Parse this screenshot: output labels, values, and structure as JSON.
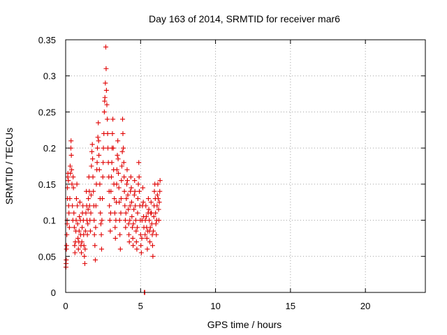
{
  "chart_data": {
    "type": "scatter",
    "title": "Day 163 of 2014, SRMTID for receiver mar6",
    "xlabel": "GPS time / hours",
    "ylabel": "SRMTID / TECUs",
    "xlim": [
      0,
      24
    ],
    "ylim": [
      0,
      0.35
    ],
    "xticks": [
      0,
      5,
      10,
      15,
      20
    ],
    "xtick_labels": [
      "0",
      "5",
      "10",
      "15",
      "20"
    ],
    "yticks": [
      0,
      0.05,
      0.1,
      0.15,
      0.2,
      0.25,
      0.3,
      0.35
    ],
    "ytick_labels": [
      "0",
      "0.05",
      "0.1",
      "0.15",
      "0.2",
      "0.25",
      "0.3",
      "0.35"
    ],
    "grid": true,
    "legend": "none",
    "marker": "+",
    "series": [
      {
        "color": "#e00000",
        "points": [
          [
            0.02,
            0.035
          ],
          [
            0.03,
            0.04
          ],
          [
            0.04,
            0.045
          ],
          [
            0.05,
            0.06
          ],
          [
            0.06,
            0.065
          ],
          [
            0.08,
            0.08
          ],
          [
            0.1,
            0.095
          ],
          [
            0.1,
            0.1
          ],
          [
            0.12,
            0.13
          ],
          [
            0.12,
            0.145
          ],
          [
            0.14,
            0.16
          ],
          [
            0.15,
            0.165
          ],
          [
            0.18,
            0.155
          ],
          [
            0.2,
            0.12
          ],
          [
            0.22,
            0.11
          ],
          [
            0.25,
            0.09
          ],
          [
            0.28,
            0.13
          ],
          [
            0.3,
            0.175
          ],
          [
            0.32,
            0.165
          ],
          [
            0.35,
            0.2
          ],
          [
            0.36,
            0.21
          ],
          [
            0.38,
            0.19
          ],
          [
            0.4,
            0.17
          ],
          [
            0.42,
            0.15
          ],
          [
            0.45,
            0.12
          ],
          [
            0.48,
            0.1
          ],
          [
            0.5,
            0.16
          ],
          [
            0.52,
            0.145
          ],
          [
            0.55,
            0.11
          ],
          [
            0.58,
            0.09
          ],
          [
            0.6,
            0.065
          ],
          [
            0.62,
            0.055
          ],
          [
            0.65,
            0.07
          ],
          [
            0.68,
            0.085
          ],
          [
            0.7,
            0.1
          ],
          [
            0.72,
            0.13
          ],
          [
            0.75,
            0.15
          ],
          [
            0.78,
            0.12
          ],
          [
            0.8,
            0.095
          ],
          [
            0.82,
            0.075
          ],
          [
            0.85,
            0.06
          ],
          [
            0.88,
            0.07
          ],
          [
            0.9,
            0.085
          ],
          [
            0.92,
            0.105
          ],
          [
            0.95,
            0.125
          ],
          [
            0.98,
            0.1
          ],
          [
            1.0,
            0.08
          ],
          [
            1.02,
            0.065
          ],
          [
            1.05,
            0.055
          ],
          [
            1.08,
            0.07
          ],
          [
            1.1,
            0.09
          ],
          [
            1.12,
            0.11
          ],
          [
            1.15,
            0.12
          ],
          [
            1.18,
            0.1
          ],
          [
            1.2,
            0.08
          ],
          [
            1.22,
            0.065
          ],
          [
            1.25,
            0.05
          ],
          [
            1.28,
            0.04
          ],
          [
            1.3,
            0.06
          ],
          [
            1.32,
            0.085
          ],
          [
            1.35,
            0.11
          ],
          [
            1.38,
            0.14
          ],
          [
            1.4,
            0.12
          ],
          [
            1.42,
            0.1
          ],
          [
            1.45,
            0.08
          ],
          [
            1.48,
            0.095
          ],
          [
            1.5,
            0.115
          ],
          [
            1.52,
            0.13
          ],
          [
            1.55,
            0.16
          ],
          [
            1.58,
            0.14
          ],
          [
            1.6,
            0.12
          ],
          [
            1.62,
            0.1
          ],
          [
            1.65,
            0.085
          ],
          [
            1.68,
            0.11
          ],
          [
            1.7,
            0.135
          ],
          [
            1.72,
            0.175
          ],
          [
            1.75,
            0.195
          ],
          [
            1.78,
            0.205
          ],
          [
            1.8,
            0.185
          ],
          [
            1.82,
            0.16
          ],
          [
            1.85,
            0.14
          ],
          [
            1.88,
            0.12
          ],
          [
            1.9,
            0.1
          ],
          [
            1.92,
            0.08
          ],
          [
            1.95,
            0.065
          ],
          [
            1.98,
            0.045
          ],
          [
            2.0,
            0.09
          ],
          [
            2.02,
            0.12
          ],
          [
            2.05,
            0.15
          ],
          [
            2.08,
            0.17
          ],
          [
            2.1,
            0.18
          ],
          [
            2.12,
            0.2
          ],
          [
            2.15,
            0.215
          ],
          [
            2.18,
            0.235
          ],
          [
            2.2,
            0.21
          ],
          [
            2.22,
            0.19
          ],
          [
            2.25,
            0.17
          ],
          [
            2.28,
            0.15
          ],
          [
            2.3,
            0.13
          ],
          [
            2.32,
            0.11
          ],
          [
            2.35,
            0.095
          ],
          [
            2.38,
            0.08
          ],
          [
            2.4,
            0.06
          ],
          [
            2.42,
            0.1
          ],
          [
            2.45,
            0.13
          ],
          [
            2.48,
            0.16
          ],
          [
            2.5,
            0.18
          ],
          [
            2.52,
            0.2
          ],
          [
            2.55,
            0.22
          ],
          [
            2.58,
            0.25
          ],
          [
            2.6,
            0.265
          ],
          [
            2.62,
            0.27
          ],
          [
            2.65,
            0.29
          ],
          [
            2.68,
            0.34
          ],
          [
            2.7,
            0.31
          ],
          [
            2.72,
            0.28
          ],
          [
            2.75,
            0.26
          ],
          [
            2.78,
            0.24
          ],
          [
            2.8,
            0.22
          ],
          [
            2.82,
            0.2
          ],
          [
            2.85,
            0.18
          ],
          [
            2.88,
            0.16
          ],
          [
            2.9,
            0.14
          ],
          [
            2.92,
            0.12
          ],
          [
            2.95,
            0.1
          ],
          [
            2.98,
            0.085
          ],
          [
            3.0,
            0.11
          ],
          [
            3.02,
            0.14
          ],
          [
            3.05,
            0.16
          ],
          [
            3.08,
            0.18
          ],
          [
            3.1,
            0.2
          ],
          [
            3.12,
            0.22
          ],
          [
            3.15,
            0.24
          ],
          [
            3.18,
            0.2
          ],
          [
            3.2,
            0.17
          ],
          [
            3.22,
            0.15
          ],
          [
            3.25,
            0.13
          ],
          [
            3.28,
            0.11
          ],
          [
            3.3,
            0.09
          ],
          [
            3.32,
            0.075
          ],
          [
            3.35,
            0.1
          ],
          [
            3.38,
            0.125
          ],
          [
            3.4,
            0.15
          ],
          [
            3.42,
            0.17
          ],
          [
            3.45,
            0.19
          ],
          [
            3.48,
            0.21
          ],
          [
            3.5,
            0.185
          ],
          [
            3.52,
            0.165
          ],
          [
            3.55,
            0.145
          ],
          [
            3.58,
            0.125
          ],
          [
            3.6,
            0.1
          ],
          [
            3.62,
            0.08
          ],
          [
            3.65,
            0.06
          ],
          [
            3.68,
            0.11
          ],
          [
            3.7,
            0.13
          ],
          [
            3.72,
            0.155
          ],
          [
            3.75,
            0.175
          ],
          [
            3.78,
            0.195
          ],
          [
            3.8,
            0.24
          ],
          [
            3.82,
            0.22
          ],
          [
            3.85,
            0.2
          ],
          [
            3.88,
            0.18
          ],
          [
            3.9,
            0.16
          ],
          [
            3.92,
            0.14
          ],
          [
            3.95,
            0.12
          ],
          [
            3.98,
            0.1
          ],
          [
            4.0,
            0.09
          ],
          [
            4.02,
            0.11
          ],
          [
            4.05,
            0.13
          ],
          [
            4.08,
            0.15
          ],
          [
            4.1,
            0.17
          ],
          [
            4.12,
            0.155
          ],
          [
            4.15,
            0.135
          ],
          [
            4.18,
            0.115
          ],
          [
            4.2,
            0.095
          ],
          [
            4.22,
            0.08
          ],
          [
            4.25,
            0.07
          ],
          [
            4.28,
            0.1
          ],
          [
            4.3,
            0.12
          ],
          [
            4.32,
            0.14
          ],
          [
            4.35,
            0.16
          ],
          [
            4.38,
            0.145
          ],
          [
            4.4,
            0.125
          ],
          [
            4.42,
            0.105
          ],
          [
            4.45,
            0.09
          ],
          [
            4.48,
            0.075
          ],
          [
            4.5,
            0.065
          ],
          [
            4.52,
            0.095
          ],
          [
            4.55,
            0.115
          ],
          [
            4.58,
            0.135
          ],
          [
            4.6,
            0.155
          ],
          [
            4.62,
            0.14
          ],
          [
            4.65,
            0.12
          ],
          [
            4.68,
            0.1
          ],
          [
            4.7,
            0.085
          ],
          [
            4.72,
            0.07
          ],
          [
            4.75,
            0.06
          ],
          [
            4.78,
            0.09
          ],
          [
            4.8,
            0.11
          ],
          [
            4.82,
            0.13
          ],
          [
            4.85,
            0.15
          ],
          [
            4.88,
            0.18
          ],
          [
            4.9,
            0.16
          ],
          [
            4.92,
            0.14
          ],
          [
            4.95,
            0.12
          ],
          [
            4.98,
            0.1
          ],
          [
            5.0,
            0.08
          ],
          [
            5.02,
            0.065
          ],
          [
            5.05,
            0.055
          ],
          [
            5.08,
            0.075
          ],
          [
            5.1,
            0.1
          ],
          [
            5.12,
            0.12
          ],
          [
            5.15,
            0.145
          ],
          [
            5.18,
            0.125
          ],
          [
            5.2,
            0.105
          ],
          [
            5.22,
            0.09
          ],
          [
            5.25,
            0.0
          ],
          [
            5.28,
            0.0
          ],
          [
            5.3,
            0.08
          ],
          [
            5.32,
            0.1
          ],
          [
            5.35,
            0.12
          ],
          [
            5.38,
            0.105
          ],
          [
            5.4,
            0.09
          ],
          [
            5.42,
            0.075
          ],
          [
            5.45,
            0.06
          ],
          [
            5.48,
            0.085
          ],
          [
            5.5,
            0.11
          ],
          [
            5.52,
            0.13
          ],
          [
            5.55,
            0.115
          ],
          [
            5.58,
            0.1
          ],
          [
            5.6,
            0.085
          ],
          [
            5.62,
            0.07
          ],
          [
            5.65,
            0.09
          ],
          [
            5.68,
            0.11
          ],
          [
            5.7,
            0.125
          ],
          [
            5.72,
            0.11
          ],
          [
            5.75,
            0.095
          ],
          [
            5.78,
            0.08
          ],
          [
            5.8,
            0.065
          ],
          [
            5.82,
            0.05
          ],
          [
            5.85,
            0.085
          ],
          [
            5.88,
            0.105
          ],
          [
            5.9,
            0.12
          ],
          [
            5.92,
            0.14
          ],
          [
            5.95,
            0.15
          ],
          [
            5.98,
            0.13
          ],
          [
            6.0,
            0.11
          ],
          [
            6.02,
            0.095
          ],
          [
            6.05,
            0.08
          ],
          [
            6.08,
            0.1
          ],
          [
            6.1,
            0.12
          ],
          [
            6.12,
            0.135
          ],
          [
            6.15,
            0.15
          ],
          [
            6.18,
            0.13
          ],
          [
            6.2,
            0.115
          ],
          [
            6.22,
            0.1
          ],
          [
            6.25,
            0.125
          ],
          [
            6.28,
            0.14
          ],
          [
            6.3,
            0.155
          ]
        ]
      }
    ]
  }
}
